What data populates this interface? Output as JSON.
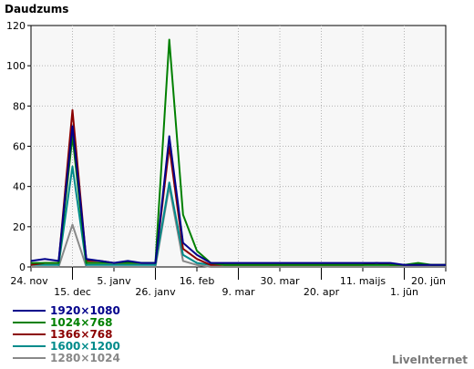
{
  "chart_data": {
    "type": "line",
    "ylabel": "Daudzums",
    "ylim": [
      0,
      120
    ],
    "yticks": [
      0,
      20,
      40,
      60,
      80,
      100,
      120
    ],
    "x": [
      "2012-11-24",
      "2012-12-01",
      "2012-12-08",
      "2012-12-15",
      "2012-12-22",
      "2012-12-29",
      "2013-01-05",
      "2013-01-12",
      "2013-01-19",
      "2013-01-26",
      "2013-02-02",
      "2013-02-09",
      "2013-02-16",
      "2013-02-23",
      "2013-03-02",
      "2013-03-09",
      "2013-03-16",
      "2013-03-23",
      "2013-03-30",
      "2013-04-06",
      "2013-04-13",
      "2013-04-20",
      "2013-04-27",
      "2013-05-04",
      "2013-05-11",
      "2013-05-18",
      "2013-05-25",
      "2013-06-01",
      "2013-06-08",
      "2013-06-15",
      "2013-06-22"
    ],
    "xtick_labels": [
      {
        "label": "24. nov",
        "row": 1
      },
      {
        "label": "15. dec",
        "row": 2
      },
      {
        "label": "5. janv",
        "row": 1
      },
      {
        "label": "26. janv",
        "row": 2
      },
      {
        "label": "16. feb",
        "row": 1
      },
      {
        "label": "9. mar",
        "row": 2
      },
      {
        "label": "30. mar",
        "row": 1
      },
      {
        "label": "20. apr",
        "row": 2
      },
      {
        "label": "11. maijs",
        "row": 1
      },
      {
        "label": "1. jūn",
        "row": 2
      },
      {
        "label": "20. jūn",
        "row": 1
      }
    ],
    "grid": true,
    "legend_position": "bottom-left",
    "series": [
      {
        "name": "1920×1080",
        "color": "#00008b",
        "values": [
          3,
          4,
          3,
          70,
          4,
          3,
          2,
          3,
          2,
          2,
          65,
          12,
          6,
          2,
          2,
          2,
          2,
          2,
          2,
          2,
          2,
          2,
          2,
          2,
          2,
          2,
          2,
          1,
          1,
          1,
          1
        ]
      },
      {
        "name": "1024×768",
        "color": "#008000",
        "values": [
          2,
          2,
          2,
          65,
          2,
          2,
          2,
          2,
          2,
          2,
          113,
          26,
          8,
          2,
          1,
          1,
          1,
          1,
          1,
          1,
          1,
          1,
          1,
          1,
          1,
          1,
          1,
          1,
          2,
          1,
          1
        ]
      },
      {
        "name": "1366×768",
        "color": "#8b0000",
        "values": [
          1,
          2,
          2,
          78,
          3,
          3,
          2,
          2,
          2,
          2,
          60,
          9,
          4,
          1,
          1,
          1,
          1,
          1,
          1,
          1,
          1,
          1,
          1,
          1,
          1,
          2,
          1,
          1,
          1,
          1,
          1
        ]
      },
      {
        "name": "1600×1200",
        "color": "#008b8b",
        "values": [
          1,
          1,
          1,
          50,
          1,
          1,
          1,
          1,
          1,
          1,
          42,
          6,
          2,
          1,
          1,
          1,
          1,
          1,
          1,
          1,
          1,
          1,
          1,
          1,
          1,
          1,
          1,
          1,
          1,
          1,
          1
        ]
      },
      {
        "name": "1280×1024",
        "color": "#888888",
        "values": [
          0,
          0,
          0,
          21,
          0,
          0,
          0,
          0,
          0,
          0,
          40,
          3,
          1,
          0,
          0,
          0,
          0,
          0,
          0,
          0,
          0,
          0,
          0,
          0,
          0,
          0,
          0,
          0,
          0,
          0,
          0
        ]
      }
    ]
  },
  "brand": "LiveInternet"
}
